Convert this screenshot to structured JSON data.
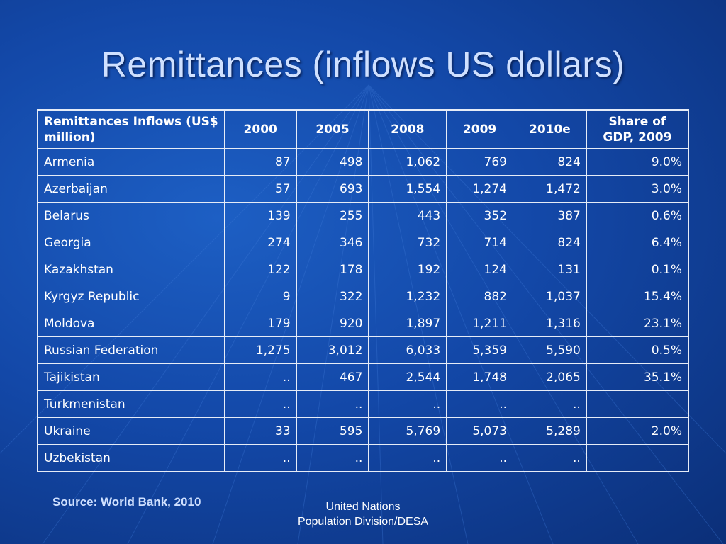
{
  "slide": {
    "title": "Remittances (inflows US dollars)",
    "source": "Source: World Bank, 2010",
    "footer_line1": "United Nations",
    "footer_line2": "Population Division/DESA"
  },
  "table": {
    "headers": [
      "Remittances Inflows (US$ million)",
      "2000",
      "2005",
      "2008",
      "2009",
      "2010e",
      "Share of GDP, 2009"
    ],
    "rows": [
      [
        "Armenia",
        "87",
        "498",
        "1,062",
        "769",
        "824",
        "9.0%"
      ],
      [
        "Azerbaijan",
        "57",
        "693",
        "1,554",
        "1,274",
        "1,472",
        "3.0%"
      ],
      [
        "Belarus",
        "139",
        "255",
        "443",
        "352",
        "387",
        "0.6%"
      ],
      [
        "Georgia",
        "274",
        "346",
        "732",
        "714",
        "824",
        "6.4%"
      ],
      [
        "Kazakhstan",
        "122",
        "178",
        "192",
        "124",
        "131",
        "0.1%"
      ],
      [
        "Kyrgyz Republic",
        "9",
        "322",
        "1,232",
        "882",
        "1,037",
        "15.4%"
      ],
      [
        "Moldova",
        "179",
        "920",
        "1,897",
        "1,211",
        "1,316",
        "23.1%"
      ],
      [
        "Russian Federation",
        "1,275",
        "3,012",
        "6,033",
        "5,359",
        "5,590",
        "0.5%"
      ],
      [
        "Tajikistan",
        "..",
        "467",
        "2,544",
        "1,748",
        "2,065",
        "35.1%"
      ],
      [
        "Turkmenistan",
        "..",
        "..",
        "..",
        "..",
        "..",
        ""
      ],
      [
        "Ukraine",
        "33",
        "595",
        "5,769",
        "5,073",
        "5,289",
        "2.0%"
      ],
      [
        "Uzbekistan",
        "..",
        "..",
        "..",
        "..",
        "..",
        ""
      ]
    ]
  },
  "colors": {
    "background": "#1348a8",
    "title": "#cfe0ff",
    "grid": "#e6ecf7",
    "text": "#ffffff"
  }
}
